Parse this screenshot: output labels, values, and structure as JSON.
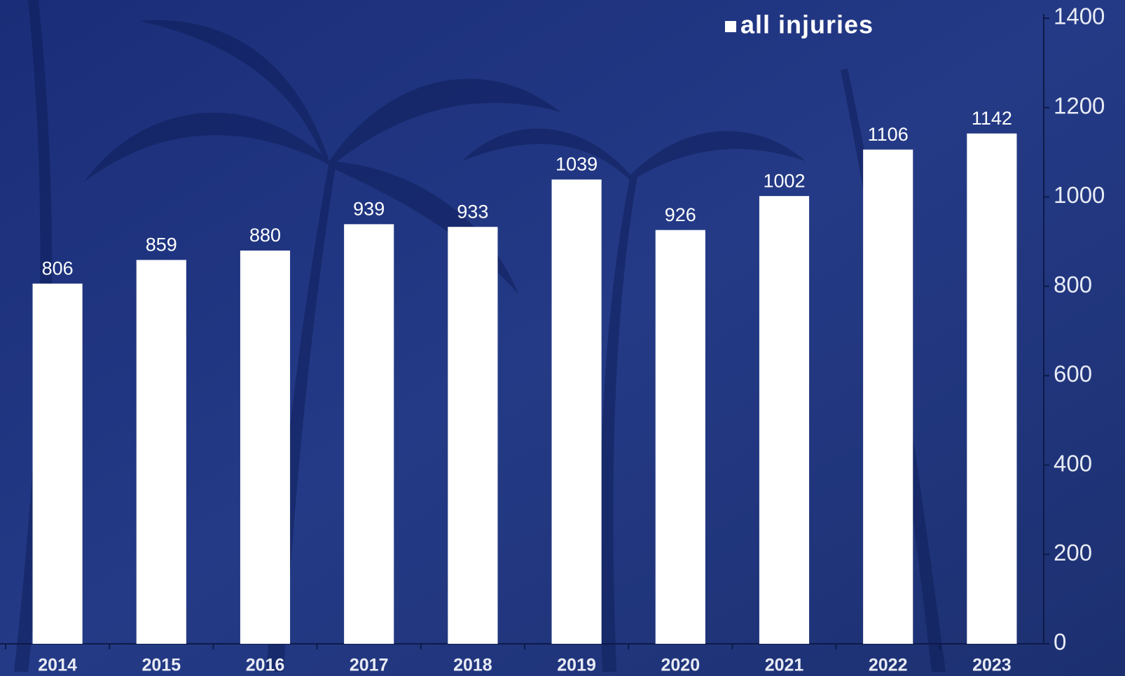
{
  "chart_data": {
    "type": "bar",
    "categories": [
      "2014",
      "2015",
      "2016",
      "2017",
      "2018",
      "2019",
      "2020",
      "2021",
      "2022",
      "2023"
    ],
    "series": [
      {
        "name": "all injuries",
        "color": "#ffffff",
        "values": [
          806,
          859,
          880,
          939,
          933,
          1039,
          926,
          1002,
          1106,
          1142
        ]
      }
    ],
    "ylim": [
      0,
      1400
    ],
    "yticks": [
      0,
      200,
      400,
      600,
      800,
      1000,
      1200,
      1400
    ],
    "y_axis_side": "right",
    "legend_position": "top"
  }
}
